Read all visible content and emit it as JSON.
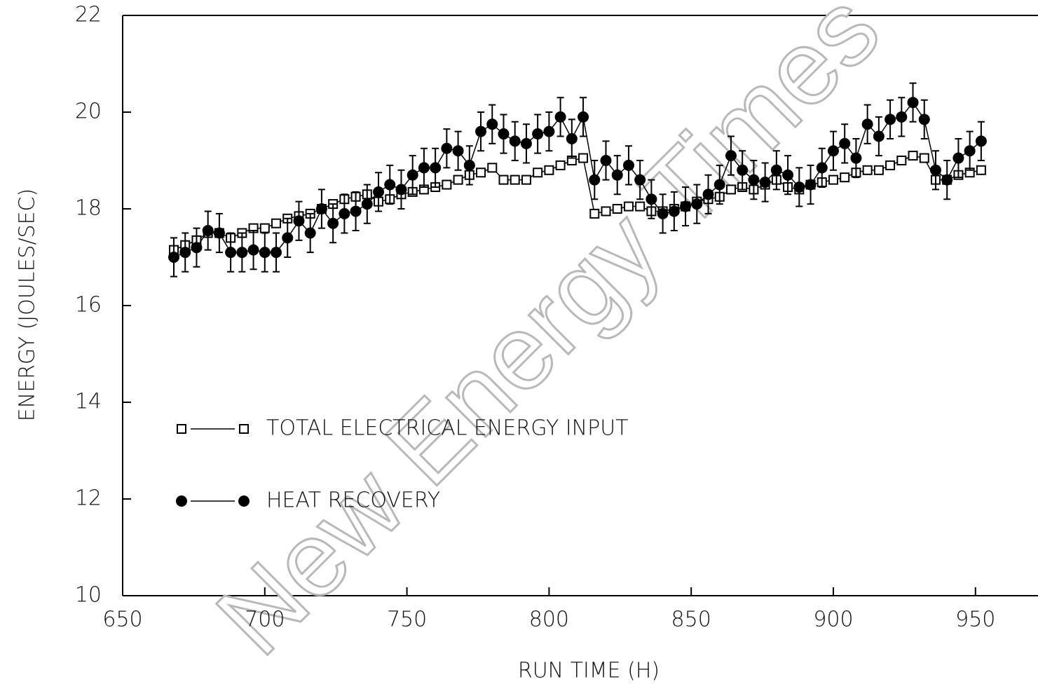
{
  "chart_data": {
    "type": "scatter",
    "xlabel": "RUN TIME (H)",
    "ylabel": "ENERGY (JOULES/SEC)",
    "watermark": "New Energy Times",
    "xlim": [
      650,
      972
    ],
    "xticks": [
      650,
      700,
      750,
      800,
      850,
      900,
      950
    ],
    "ylim": [
      10,
      22
    ],
    "yticks": [
      10,
      12,
      14,
      16,
      18,
      20,
      22
    ],
    "x": [
      668,
      672,
      676,
      680,
      684,
      688,
      692,
      696,
      700,
      704,
      708,
      712,
      716,
      720,
      724,
      728,
      732,
      736,
      740,
      744,
      748,
      752,
      756,
      760,
      764,
      768,
      772,
      776,
      780,
      784,
      788,
      792,
      796,
      800,
      804,
      808,
      812,
      816,
      820,
      824,
      828,
      832,
      836,
      840,
      844,
      848,
      852,
      856,
      860,
      864,
      868,
      872,
      876,
      880,
      884,
      888,
      892,
      896,
      900,
      904,
      908,
      912,
      916,
      920,
      924,
      928,
      932,
      936,
      940,
      944,
      948,
      952
    ],
    "series": [
      {
        "name": "TOTAL ELECTRICAL ENERGY INPUT",
        "color": "#000000",
        "marker": "square",
        "filled": false,
        "values": [
          17.15,
          17.25,
          17.35,
          17.5,
          17.5,
          17.4,
          17.5,
          17.6,
          17.6,
          17.7,
          17.8,
          17.85,
          17.9,
          18.0,
          18.1,
          18.2,
          18.25,
          18.3,
          18.15,
          18.2,
          18.3,
          18.35,
          18.4,
          18.45,
          18.5,
          18.6,
          18.7,
          18.75,
          18.85,
          18.6,
          18.6,
          18.6,
          18.75,
          18.8,
          18.9,
          19.0,
          19.05,
          17.9,
          17.95,
          18.0,
          18.05,
          18.05,
          17.95,
          17.95,
          18.0,
          18.05,
          18.15,
          18.2,
          18.25,
          18.4,
          18.45,
          18.4,
          18.5,
          18.6,
          18.45,
          18.4,
          18.5,
          18.55,
          18.6,
          18.65,
          18.75,
          18.8,
          18.8,
          18.9,
          19.0,
          19.1,
          19.05,
          18.6,
          18.6,
          18.7,
          18.75,
          18.8
        ]
      },
      {
        "name": "HEAT RECOVERY",
        "color": "#000000",
        "marker": "circle",
        "filled": true,
        "values": [
          17.0,
          17.1,
          17.2,
          17.55,
          17.5,
          17.1,
          17.1,
          17.15,
          17.1,
          17.1,
          17.4,
          17.75,
          17.5,
          18.0,
          17.7,
          17.9,
          17.95,
          18.1,
          18.35,
          18.5,
          18.4,
          18.7,
          18.85,
          18.85,
          19.25,
          19.2,
          18.9,
          19.6,
          19.75,
          19.55,
          19.4,
          19.35,
          19.55,
          19.6,
          19.9,
          19.45,
          19.9,
          18.6,
          19.0,
          18.7,
          18.9,
          18.6,
          18.2,
          17.9,
          17.95,
          18.05,
          18.1,
          18.3,
          18.5,
          19.1,
          18.8,
          18.6,
          18.55,
          18.8,
          18.7,
          18.45,
          18.5,
          18.85,
          19.2,
          19.35,
          19.05,
          19.75,
          19.5,
          19.85,
          19.9,
          20.2,
          19.85,
          18.8,
          18.6,
          19.05,
          19.2,
          19.4
        ],
        "errors": [
          0.4,
          0.4,
          0.4,
          0.4,
          0.4,
          0.4,
          0.4,
          0.4,
          0.4,
          0.4,
          0.4,
          0.4,
          0.4,
          0.4,
          0.4,
          0.4,
          0.4,
          0.4,
          0.4,
          0.4,
          0.4,
          0.4,
          0.4,
          0.4,
          0.4,
          0.4,
          0.4,
          0.4,
          0.4,
          0.4,
          0.4,
          0.4,
          0.4,
          0.4,
          0.4,
          0.4,
          0.4,
          0.4,
          0.4,
          0.4,
          0.4,
          0.4,
          0.4,
          0.4,
          0.4,
          0.4,
          0.4,
          0.4,
          0.4,
          0.4,
          0.4,
          0.4,
          0.4,
          0.4,
          0.4,
          0.4,
          0.4,
          0.4,
          0.4,
          0.4,
          0.4,
          0.4,
          0.4,
          0.4,
          0.4,
          0.4,
          0.4,
          0.4,
          0.4,
          0.4,
          0.4,
          0.4
        ]
      }
    ]
  }
}
